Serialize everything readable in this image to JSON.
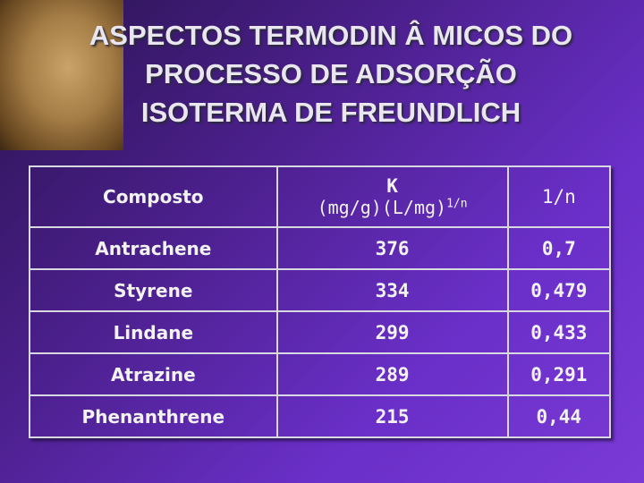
{
  "title": {
    "lines": [
      "ASPECTOS TERMODIN Â MICOS DO",
      "PROCESSO DE ADSORÇÃO",
      "ISOTERMA DE FREUNDLICH"
    ]
  },
  "table": {
    "header": {
      "compound": "Composto",
      "k_symbol": "K",
      "k_units": "(mg/g)(L/mg)",
      "k_exponent": "1/n",
      "n": "1/n"
    },
    "rows": [
      [
        "Antrachene",
        "376",
        "0,7"
      ],
      [
        "Styrene",
        "334",
        "0,479"
      ],
      [
        "Lindane",
        "299",
        "0,433"
      ],
      [
        "Atrazine",
        "289",
        "0,291"
      ],
      [
        "Phenanthrene",
        "215",
        "0,44"
      ]
    ]
  }
}
